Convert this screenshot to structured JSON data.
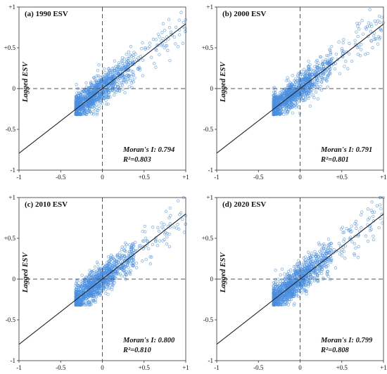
{
  "chart_data": [
    {
      "type": "scatter",
      "title": "(a) 1990 ESV",
      "ylabel": "Lagged ESV",
      "xlabel": "",
      "xlim": [
        -1,
        1
      ],
      "ylim": [
        -1,
        1
      ],
      "xticks": [
        "-1",
        "-0.5",
        "0",
        "+0.5",
        "+1"
      ],
      "yticks": [
        "+1",
        "+0.5",
        "0",
        "-0.5",
        "-1"
      ],
      "morans_i_text": "Moran's I: 0.794",
      "r2_text": "R²=0.803",
      "fit_line": {
        "slope": 0.794,
        "intercept": 0
      }
    },
    {
      "type": "scatter",
      "title": "(b) 2000 ESV",
      "ylabel": "Lagged ESV",
      "xlabel": "",
      "xlim": [
        -1,
        1
      ],
      "ylim": [
        -1,
        1
      ],
      "xticks": [
        "-1",
        "-0.5",
        "0",
        "+0.5",
        "+1"
      ],
      "yticks": [
        "+1",
        "+0.5",
        "0",
        "-0.5",
        "-1"
      ],
      "morans_i_text": "Moran's I: 0.791",
      "r2_text": "R²=0.801",
      "fit_line": {
        "slope": 0.791,
        "intercept": 0
      }
    },
    {
      "type": "scatter",
      "title": "(c) 2010 ESV",
      "ylabel": "Lagged ESV",
      "xlabel": "",
      "xlim": [
        -1,
        1
      ],
      "ylim": [
        -1,
        1
      ],
      "xticks": [
        "-1",
        "-0.5",
        "0",
        "+0.5",
        "+1"
      ],
      "yticks": [
        "+1",
        "+0.5",
        "0",
        "-0.5",
        "-1"
      ],
      "morans_i_text": "Moran's I: 0.800",
      "r2_text": "R²=0.810",
      "fit_line": {
        "slope": 0.8,
        "intercept": 0
      }
    },
    {
      "type": "scatter",
      "title": "(d) 2020 ESV",
      "ylabel": "Lagged ESV",
      "xlabel": "",
      "xlim": [
        -1,
        1
      ],
      "ylim": [
        -1,
        1
      ],
      "xticks": [
        "-1",
        "-0.5",
        "0",
        "+0.5",
        "+1"
      ],
      "yticks": [
        "+1",
        "+0.5",
        "0",
        "-0.5",
        "-1"
      ],
      "morans_i_text": "Moran's I: 0.799",
      "r2_text": "R²=0.808",
      "fit_line": {
        "slope": 0.799,
        "intercept": 0
      }
    }
  ],
  "style": {
    "point_color": "#4a8fe0",
    "line_color": "#222222",
    "dashed_color": "#555555",
    "frame_color": "#333333"
  },
  "point_cloud": {
    "x_min": -0.32,
    "x_max": 1.0,
    "y_min": -0.32,
    "y_max": 1.0,
    "dense_spread": 0.09
  }
}
